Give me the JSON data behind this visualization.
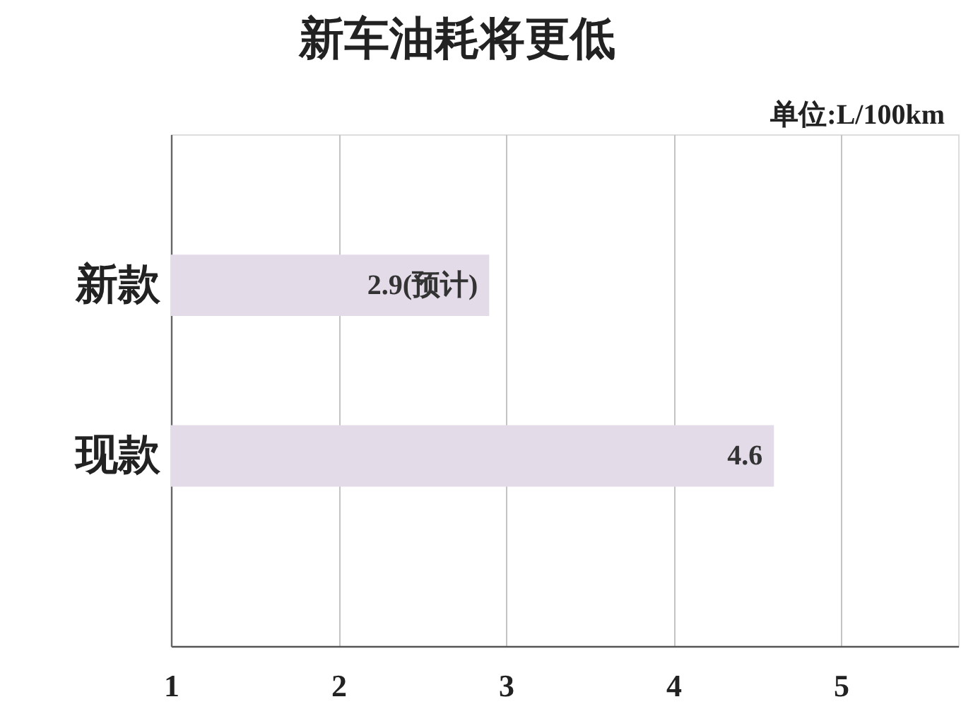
{
  "chart_data": {
    "type": "bar",
    "orientation": "horizontal",
    "title": "新车油耗将更低",
    "xlabel": "单位:L/100km",
    "categories": [
      "新款",
      "现款"
    ],
    "values": [
      2.9,
      4.6
    ],
    "color": "#e4dbe8",
    "value_labels": [
      "2.9(预计)",
      "4.6"
    ],
    "xlim": [
      1,
      5.7
    ],
    "xticks": [
      1,
      2,
      3,
      4,
      5
    ],
    "grid": "x"
  }
}
